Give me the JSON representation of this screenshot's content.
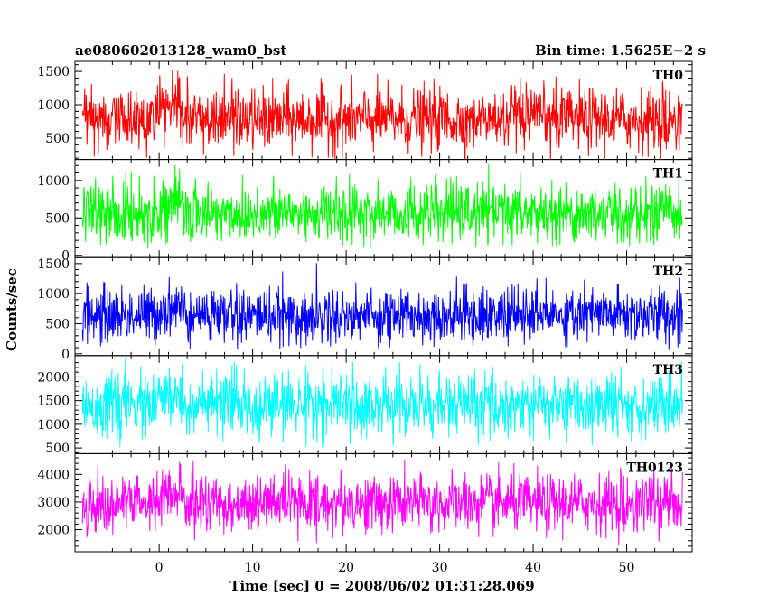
{
  "header": {
    "left": "ae080602013128_wam0_bst",
    "right": "Bin time: 1.5625E−2 s"
  },
  "chart_data": {
    "type": "line",
    "title": "ae080602013128_wam0_bst",
    "subtitle": "Bin time: 1.5625E−2 s",
    "xlabel": "Time [sec] 0 = 2008/06/02 01:31:28.069",
    "ylabel": "Counts/sec",
    "xlim": [
      -9,
      57
    ],
    "data_x_range": [
      -8.2,
      56
    ],
    "bin_time_s": 0.015625,
    "x_ticks": [
      0,
      10,
      20,
      30,
      40,
      50
    ],
    "x_tick_labels": [
      "0",
      "10",
      "20",
      "30",
      "40",
      "50"
    ],
    "grid": false,
    "panels": [
      {
        "name": "TH0",
        "color": "#ff0000",
        "ylim": [
          180,
          1650
        ],
        "y_ticks": [
          500,
          1000,
          1500
        ],
        "y_tick_labels": [
          "500",
          "1000",
          "1500"
        ],
        "baseline_mean": 780,
        "noise_sd": 230,
        "min": 150,
        "max": 1640,
        "burst": {
          "t_start": 0,
          "t_end": 2.5,
          "mean": 950
        }
      },
      {
        "name": "TH1",
        "color": "#00ff00",
        "ylim": [
          -30,
          1280
        ],
        "y_ticks": [
          0,
          500,
          1000
        ],
        "y_tick_labels": [
          "0",
          "500",
          "1000"
        ],
        "baseline_mean": 560,
        "noise_sd": 200,
        "min": 80,
        "max": 1250,
        "burst": {
          "t_start": 0,
          "t_end": 2.5,
          "mean": 680
        }
      },
      {
        "name": "TH2",
        "color": "#0000ff",
        "ylim": [
          -30,
          1600
        ],
        "y_ticks": [
          0,
          500,
          1000,
          1500
        ],
        "y_tick_labels": [
          "0",
          "500",
          "1000",
          "1500"
        ],
        "baseline_mean": 640,
        "noise_sd": 230,
        "min": 60,
        "max": 1550,
        "burst": {
          "t_start": 0,
          "t_end": 2.5,
          "mean": 760
        }
      },
      {
        "name": "TH3",
        "color": "#00ffff",
        "ylim": [
          380,
          2450
        ],
        "y_ticks": [
          500,
          1000,
          1500,
          2000
        ],
        "y_tick_labels": [
          "500",
          "1000",
          "1500",
          "2000"
        ],
        "baseline_mean": 1400,
        "noise_sd": 330,
        "min": 500,
        "max": 2400,
        "burst": {
          "t_start": 0,
          "t_end": 2.5,
          "mean": 1560
        }
      },
      {
        "name": "TH0123",
        "color": "#ff00ff",
        "ylim": [
          1200,
          4750
        ],
        "y_ticks": [
          2000,
          3000,
          4000
        ],
        "y_tick_labels": [
          "2000",
          "3000",
          "4000"
        ],
        "baseline_mean": 2950,
        "noise_sd": 520,
        "min": 1400,
        "max": 4700,
        "burst": {
          "t_start": 0,
          "t_end": 2.5,
          "mean": 3250
        }
      }
    ]
  }
}
